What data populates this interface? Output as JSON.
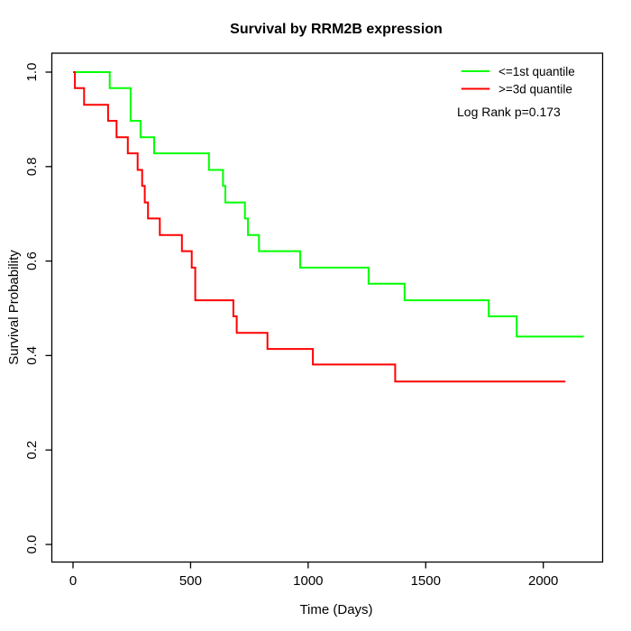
{
  "title": "Survival by RRM2B expression",
  "axes": {
    "x": {
      "label": "Time (Days)"
    },
    "y": {
      "label": "Survival Probability"
    }
  },
  "legend": {
    "items": [
      {
        "label": "<=1st quantile",
        "color": "#00ff00"
      },
      {
        "label": ">=3d quantile",
        "color": "#ff0000"
      }
    ],
    "annotation": "Log Rank p=0.173"
  },
  "chart_data": {
    "type": "line",
    "subtype": "kaplan-meier-step",
    "title": "Survival by RRM2B expression",
    "xlabel": "Time (Days)",
    "ylabel": "Survival Probability",
    "xlim": [
      0,
      2250
    ],
    "ylim": [
      0.0,
      1.0
    ],
    "x_ticks": [
      {
        "value": 0,
        "label": "0"
      },
      {
        "value": 500,
        "label": "500"
      },
      {
        "value": 1000,
        "label": "1000"
      },
      {
        "value": 1500,
        "label": "1500"
      },
      {
        "value": 2000,
        "label": "2000"
      }
    ],
    "y_ticks": [
      {
        "value": 0.0,
        "label": "0.0"
      },
      {
        "value": 0.2,
        "label": "0.2"
      },
      {
        "value": 0.4,
        "label": "0.4"
      },
      {
        "value": 0.6,
        "label": "0.6"
      },
      {
        "value": 0.8,
        "label": "0.8"
      },
      {
        "value": 1.0,
        "label": "1.0"
      }
    ],
    "grid": false,
    "legend_position": "top-right",
    "annotation": "Log Rank p=0.173",
    "series": [
      {
        "name": "<=1st quantile",
        "color": "#00ff00",
        "start": [
          0,
          1.0
        ],
        "steps": [
          [
            156,
            0.966
          ],
          [
            245,
            0.897
          ],
          [
            287,
            0.862
          ],
          [
            345,
            0.828
          ],
          [
            578,
            0.793
          ],
          [
            638,
            0.759
          ],
          [
            648,
            0.724
          ],
          [
            731,
            0.69
          ],
          [
            744,
            0.655
          ],
          [
            791,
            0.621
          ],
          [
            966,
            0.586
          ],
          [
            1257,
            0.552
          ],
          [
            1410,
            0.517
          ],
          [
            1768,
            0.483
          ],
          [
            1887,
            0.44
          ]
        ],
        "end_time": 2172
      },
      {
        "name": ">=3d quantile",
        "color": "#ff0000",
        "start": [
          0,
          1.0
        ],
        "steps": [
          [
            8,
            0.966
          ],
          [
            47,
            0.931
          ],
          [
            149,
            0.897
          ],
          [
            185,
            0.862
          ],
          [
            233,
            0.828
          ],
          [
            275,
            0.793
          ],
          [
            294,
            0.759
          ],
          [
            305,
            0.724
          ],
          [
            319,
            0.69
          ],
          [
            369,
            0.655
          ],
          [
            463,
            0.621
          ],
          [
            505,
            0.586
          ],
          [
            520,
            0.517
          ],
          [
            682,
            0.483
          ],
          [
            696,
            0.448
          ],
          [
            827,
            0.414
          ],
          [
            1020,
            0.381
          ],
          [
            1370,
            0.345
          ]
        ],
        "end_time": 2094
      }
    ]
  }
}
